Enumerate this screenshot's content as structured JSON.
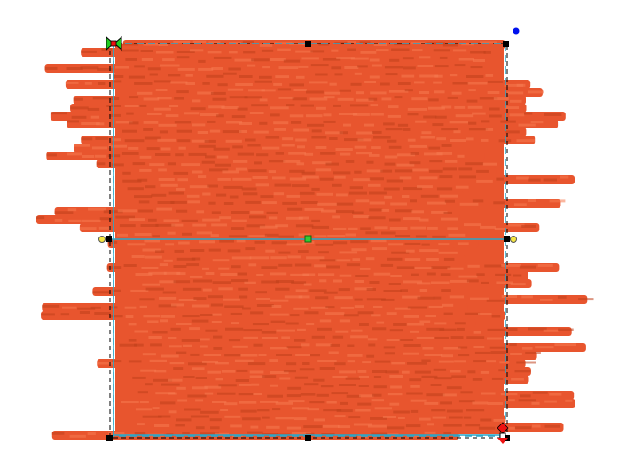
{
  "canvas": {
    "background": "#ffffff",
    "thread_color": "#e8552e",
    "thread_shadow": "#c0401c",
    "thread_highlight": "#f57a50"
  },
  "selection": {
    "box_color": "#000000",
    "guide_color": "#2aa6c8",
    "handle_color": "#000000",
    "center_handle_color": "#33cc33",
    "start_marker_color": "#22cc22",
    "end_marker_color": "#ee1111",
    "side_handle_color": "#f5e642",
    "rotate_handle_color": "#0011ee"
  }
}
